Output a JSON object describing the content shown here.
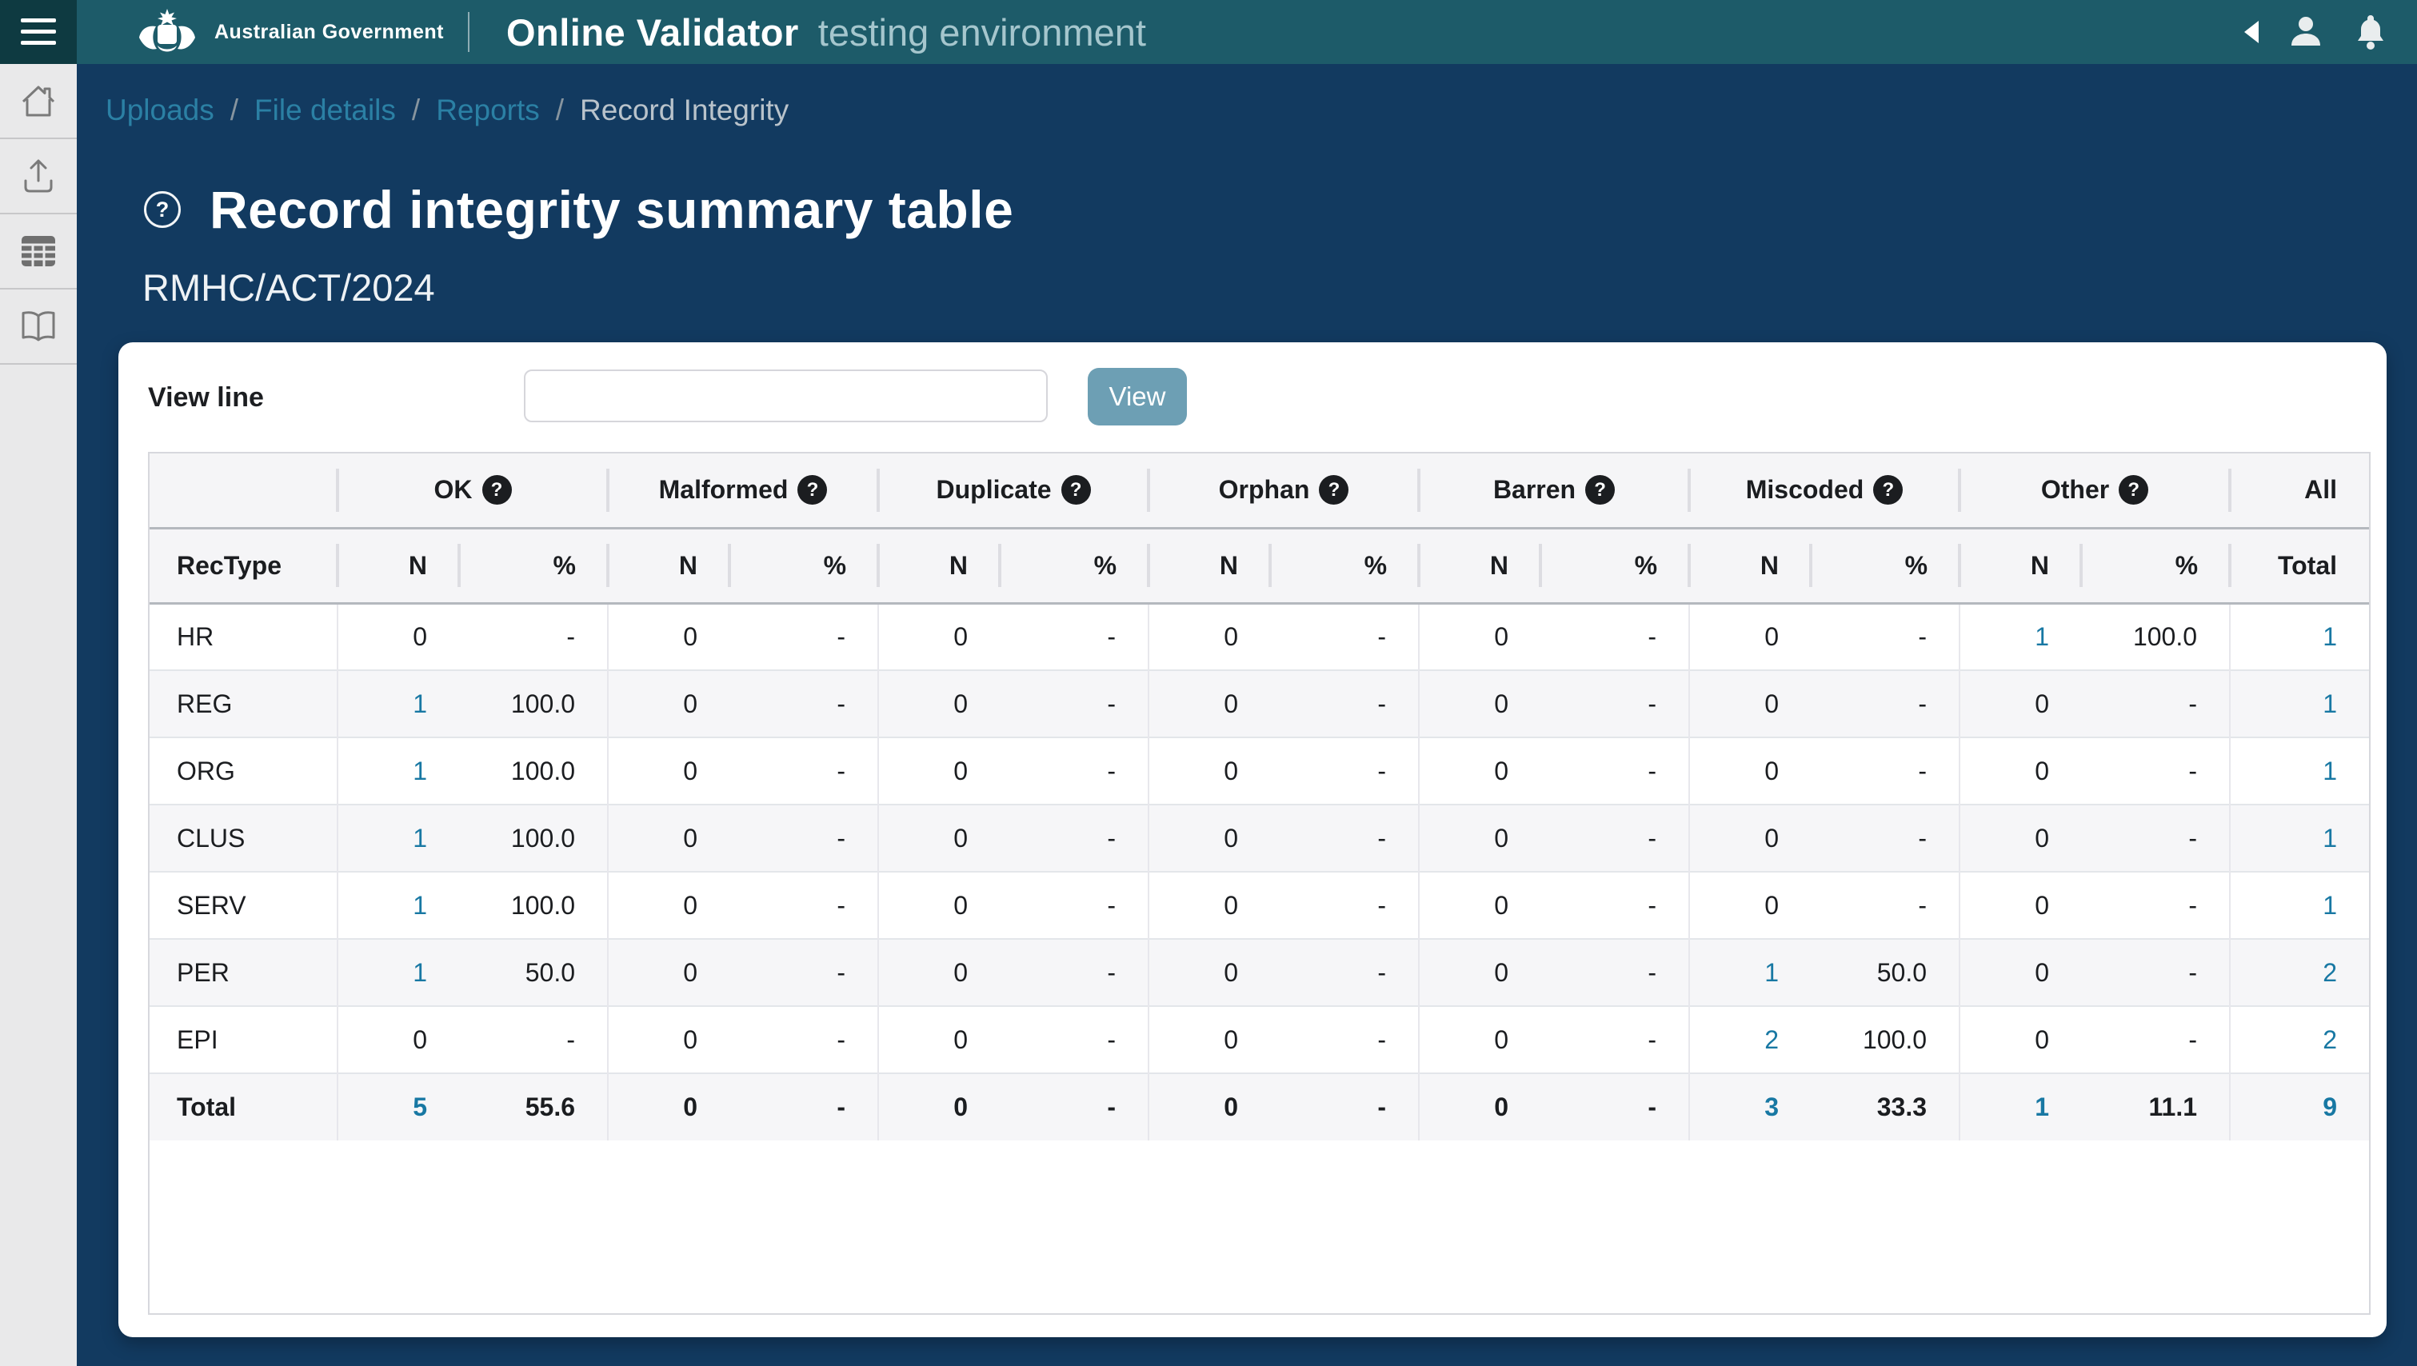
{
  "colors": {
    "brand_teal": "#1d5b69",
    "rail_teal": "#0e3a41",
    "page_navy": "#123a60",
    "link_blue": "#1878a3",
    "button_blue": "#6d9fb4"
  },
  "icons": {
    "help_glyph": "?",
    "topbar_right": [
      "back-caret-icon",
      "user-icon",
      "bell-icon"
    ],
    "sidebar": [
      "home-icon",
      "upload-icon",
      "table-icon",
      "book-icon"
    ],
    "rail": "hamburger-icon"
  },
  "header": {
    "brand": "Australian Government",
    "app_title": "Online Validator",
    "app_subtitle": "testing environment"
  },
  "breadcrumb": {
    "separator": "/",
    "items": [
      {
        "label": "Uploads",
        "link": true
      },
      {
        "label": "File details",
        "link": true
      },
      {
        "label": "Reports",
        "link": true
      },
      {
        "label": "Record Integrity",
        "link": false
      }
    ]
  },
  "page": {
    "title": "Record integrity summary table",
    "subtitle": "RMHC/ACT/2024"
  },
  "toolbar": {
    "view_line_label": "View line",
    "input_value": "",
    "view_button_label": "View"
  },
  "table": {
    "groups": [
      {
        "key": "ok",
        "label": "OK",
        "help": true
      },
      {
        "key": "malformed",
        "label": "Malformed",
        "help": true
      },
      {
        "key": "duplicate",
        "label": "Duplicate",
        "help": true
      },
      {
        "key": "orphan",
        "label": "Orphan",
        "help": true
      },
      {
        "key": "barren",
        "label": "Barren",
        "help": true
      },
      {
        "key": "miscoded",
        "label": "Miscoded",
        "help": true
      },
      {
        "key": "other",
        "label": "Other",
        "help": true
      }
    ],
    "all_label": "All",
    "subheaders": {
      "rec_type": "RecType",
      "n": "N",
      "pct": "%",
      "total": "Total"
    },
    "rows": [
      {
        "key": "hr",
        "label": "HR",
        "bold": false,
        "total": "1",
        "cells": [
          {
            "n": "0",
            "p": "-",
            "link": false
          },
          {
            "n": "0",
            "p": "-",
            "link": false
          },
          {
            "n": "0",
            "p": "-",
            "link": false
          },
          {
            "n": "0",
            "p": "-",
            "link": false
          },
          {
            "n": "0",
            "p": "-",
            "link": false
          },
          {
            "n": "0",
            "p": "-",
            "link": false
          },
          {
            "n": "1",
            "p": "100.0",
            "link": true
          }
        ]
      },
      {
        "key": "reg",
        "label": "REG",
        "bold": false,
        "total": "1",
        "cells": [
          {
            "n": "1",
            "p": "100.0",
            "link": true
          },
          {
            "n": "0",
            "p": "-",
            "link": false
          },
          {
            "n": "0",
            "p": "-",
            "link": false
          },
          {
            "n": "0",
            "p": "-",
            "link": false
          },
          {
            "n": "0",
            "p": "-",
            "link": false
          },
          {
            "n": "0",
            "p": "-",
            "link": false
          },
          {
            "n": "0",
            "p": "-",
            "link": false
          }
        ]
      },
      {
        "key": "org",
        "label": "ORG",
        "bold": false,
        "total": "1",
        "cells": [
          {
            "n": "1",
            "p": "100.0",
            "link": true
          },
          {
            "n": "0",
            "p": "-",
            "link": false
          },
          {
            "n": "0",
            "p": "-",
            "link": false
          },
          {
            "n": "0",
            "p": "-",
            "link": false
          },
          {
            "n": "0",
            "p": "-",
            "link": false
          },
          {
            "n": "0",
            "p": "-",
            "link": false
          },
          {
            "n": "0",
            "p": "-",
            "link": false
          }
        ]
      },
      {
        "key": "clus",
        "label": "CLUS",
        "bold": false,
        "total": "1",
        "cells": [
          {
            "n": "1",
            "p": "100.0",
            "link": true
          },
          {
            "n": "0",
            "p": "-",
            "link": false
          },
          {
            "n": "0",
            "p": "-",
            "link": false
          },
          {
            "n": "0",
            "p": "-",
            "link": false
          },
          {
            "n": "0",
            "p": "-",
            "link": false
          },
          {
            "n": "0",
            "p": "-",
            "link": false
          },
          {
            "n": "0",
            "p": "-",
            "link": false
          }
        ]
      },
      {
        "key": "serv",
        "label": "SERV",
        "bold": false,
        "total": "1",
        "cells": [
          {
            "n": "1",
            "p": "100.0",
            "link": true
          },
          {
            "n": "0",
            "p": "-",
            "link": false
          },
          {
            "n": "0",
            "p": "-",
            "link": false
          },
          {
            "n": "0",
            "p": "-",
            "link": false
          },
          {
            "n": "0",
            "p": "-",
            "link": false
          },
          {
            "n": "0",
            "p": "-",
            "link": false
          },
          {
            "n": "0",
            "p": "-",
            "link": false
          }
        ]
      },
      {
        "key": "per",
        "label": "PER",
        "bold": false,
        "total": "2",
        "cells": [
          {
            "n": "1",
            "p": "50.0",
            "link": true
          },
          {
            "n": "0",
            "p": "-",
            "link": false
          },
          {
            "n": "0",
            "p": "-",
            "link": false
          },
          {
            "n": "0",
            "p": "-",
            "link": false
          },
          {
            "n": "0",
            "p": "-",
            "link": false
          },
          {
            "n": "1",
            "p": "50.0",
            "link": true
          },
          {
            "n": "0",
            "p": "-",
            "link": false
          }
        ]
      },
      {
        "key": "epi",
        "label": "EPI",
        "bold": false,
        "total": "2",
        "cells": [
          {
            "n": "0",
            "p": "-",
            "link": false
          },
          {
            "n": "0",
            "p": "-",
            "link": false
          },
          {
            "n": "0",
            "p": "-",
            "link": false
          },
          {
            "n": "0",
            "p": "-",
            "link": false
          },
          {
            "n": "0",
            "p": "-",
            "link": false
          },
          {
            "n": "2",
            "p": "100.0",
            "link": true
          },
          {
            "n": "0",
            "p": "-",
            "link": false
          }
        ]
      },
      {
        "key": "total",
        "label": "Total",
        "bold": true,
        "total": "9",
        "cells": [
          {
            "n": "5",
            "p": "55.6",
            "link": true
          },
          {
            "n": "0",
            "p": "-",
            "link": false
          },
          {
            "n": "0",
            "p": "-",
            "link": false
          },
          {
            "n": "0",
            "p": "-",
            "link": false
          },
          {
            "n": "0",
            "p": "-",
            "link": false
          },
          {
            "n": "3",
            "p": "33.3",
            "link": true
          },
          {
            "n": "1",
            "p": "11.1",
            "link": true
          }
        ]
      }
    ]
  }
}
